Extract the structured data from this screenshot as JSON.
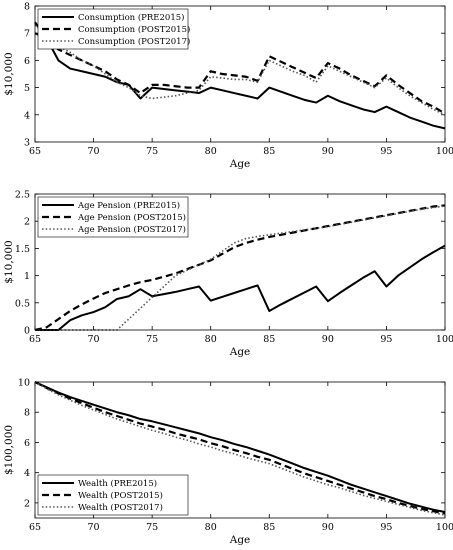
{
  "chart_data": [
    {
      "type": "line",
      "xlabel": "Age",
      "ylabel": "$10,000",
      "xlim": [
        65,
        100
      ],
      "ylim": [
        3,
        8
      ],
      "xticks": [
        65,
        70,
        75,
        80,
        85,
        90,
        95,
        100
      ],
      "yticks": [
        3,
        4,
        5,
        6,
        7,
        8
      ],
      "legend": "top-left",
      "grid": false,
      "series": [
        {
          "name": "Consumption (PRE2015)",
          "style": "solid",
          "x": [
            65,
            66,
            67,
            68,
            69,
            70,
            71,
            72,
            73,
            74,
            75,
            76,
            77,
            78,
            79,
            80,
            81,
            82,
            83,
            84,
            85,
            86,
            87,
            88,
            89,
            90,
            91,
            92,
            93,
            94,
            95,
            96,
            97,
            98,
            99,
            100
          ],
          "y": [
            7.0,
            6.8,
            6.0,
            5.7,
            5.6,
            5.5,
            5.4,
            5.2,
            5.1,
            4.6,
            5.0,
            4.95,
            4.9,
            4.85,
            4.8,
            5.0,
            4.9,
            4.8,
            4.7,
            4.6,
            5.0,
            4.85,
            4.7,
            4.55,
            4.45,
            4.7,
            4.5,
            4.35,
            4.2,
            4.1,
            4.3,
            4.1,
            3.9,
            3.75,
            3.6,
            3.5
          ]
        },
        {
          "name": "Consumption (POST2015)",
          "style": "dashed",
          "x": [
            65,
            66,
            67,
            68,
            69,
            70,
            71,
            72,
            73,
            74,
            75,
            76,
            77,
            78,
            79,
            80,
            81,
            82,
            83,
            84,
            85,
            86,
            87,
            88,
            89,
            90,
            91,
            92,
            93,
            94,
            95,
            96,
            97,
            98,
            99,
            100
          ],
          "y": [
            7.4,
            6.8,
            6.4,
            6.2,
            6.0,
            5.8,
            5.6,
            5.3,
            5.1,
            4.8,
            5.1,
            5.1,
            5.05,
            5.0,
            5.0,
            5.6,
            5.5,
            5.45,
            5.4,
            5.25,
            6.15,
            5.95,
            5.75,
            5.55,
            5.35,
            5.9,
            5.7,
            5.45,
            5.25,
            5.05,
            5.45,
            5.1,
            4.8,
            4.5,
            4.3,
            4.05
          ]
        },
        {
          "name": "Consumption (POST2017)",
          "style": "dotted",
          "x": [
            65,
            66,
            67,
            68,
            69,
            70,
            71,
            72,
            73,
            74,
            75,
            76,
            77,
            78,
            79,
            80,
            81,
            82,
            83,
            84,
            85,
            86,
            87,
            88,
            89,
            90,
            91,
            92,
            93,
            94,
            95,
            96,
            97,
            98,
            99,
            100
          ],
          "y": [
            7.3,
            6.9,
            6.5,
            6.3,
            6.0,
            5.8,
            5.5,
            5.2,
            5.0,
            4.7,
            4.6,
            4.65,
            4.7,
            4.8,
            4.9,
            5.4,
            5.35,
            5.3,
            5.3,
            5.2,
            6.0,
            5.8,
            5.6,
            5.45,
            5.2,
            5.8,
            5.6,
            5.4,
            5.2,
            5.0,
            5.35,
            5.0,
            4.7,
            4.45,
            4.2,
            4.0
          ]
        }
      ]
    },
    {
      "type": "line",
      "xlabel": "Age",
      "ylabel": "$10,000",
      "xlim": [
        65,
        100
      ],
      "ylim": [
        0,
        2.5
      ],
      "xticks": [
        65,
        70,
        75,
        80,
        85,
        90,
        95,
        100
      ],
      "yticks": [
        0,
        0.5,
        1,
        1.5,
        2,
        2.5
      ],
      "ytick_labels": [
        "0",
        "0.5",
        "1",
        "1.5",
        "2",
        "2.5"
      ],
      "legend": "top-left",
      "grid": false,
      "series": [
        {
          "name": "Age Pension (PRE2015)",
          "style": "solid",
          "x": [
            65,
            66,
            67,
            68,
            69,
            70,
            71,
            72,
            73,
            74,
            75,
            76,
            77,
            78,
            79,
            80,
            81,
            82,
            83,
            84,
            85,
            86,
            87,
            88,
            89,
            90,
            91,
            92,
            93,
            94,
            95,
            96,
            97,
            98,
            99,
            100
          ],
          "y": [
            0,
            0,
            0,
            0.18,
            0.27,
            0.33,
            0.42,
            0.57,
            0.62,
            0.75,
            0.62,
            0.66,
            0.7,
            0.75,
            0.8,
            0.54,
            0.61,
            0.68,
            0.75,
            0.82,
            0.35,
            0.47,
            0.58,
            0.69,
            0.8,
            0.53,
            0.68,
            0.82,
            0.96,
            1.08,
            0.8,
            1.0,
            1.15,
            1.3,
            1.43,
            1.55
          ]
        },
        {
          "name": "Age Pension (POST2015)",
          "style": "dashed",
          "x": [
            65,
            66,
            67,
            68,
            69,
            70,
            71,
            72,
            73,
            74,
            75,
            76,
            77,
            78,
            79,
            80,
            81,
            82,
            83,
            84,
            85,
            86,
            87,
            88,
            89,
            90,
            91,
            92,
            93,
            94,
            95,
            96,
            97,
            98,
            99,
            100
          ],
          "y": [
            0,
            0.05,
            0.2,
            0.35,
            0.47,
            0.58,
            0.68,
            0.75,
            0.82,
            0.88,
            0.92,
            0.98,
            1.04,
            1.12,
            1.2,
            1.28,
            1.4,
            1.52,
            1.6,
            1.66,
            1.71,
            1.75,
            1.79,
            1.83,
            1.87,
            1.91,
            1.95,
            1.99,
            2.03,
            2.07,
            2.11,
            2.15,
            2.19,
            2.23,
            2.27,
            2.29
          ]
        },
        {
          "name": "Age Pension (POST2017)",
          "style": "dotted",
          "x": [
            65,
            66,
            67,
            68,
            69,
            70,
            71,
            72,
            73,
            74,
            75,
            76,
            77,
            78,
            79,
            80,
            81,
            82,
            83,
            84,
            85,
            86,
            87,
            88,
            89,
            90,
            91,
            92,
            93,
            94,
            95,
            96,
            97,
            98,
            99,
            100
          ],
          "y": [
            0,
            0,
            0,
            0,
            0,
            0,
            0,
            0,
            0.2,
            0.4,
            0.6,
            0.8,
            1.0,
            1.1,
            1.2,
            1.3,
            1.45,
            1.6,
            1.68,
            1.72,
            1.75,
            1.78,
            1.81,
            1.84,
            1.87,
            1.9,
            1.94,
            1.98,
            2.02,
            2.06,
            2.1,
            2.14,
            2.18,
            2.22,
            2.25,
            2.28
          ]
        }
      ]
    },
    {
      "type": "line",
      "xlabel": "Age",
      "ylabel": "$100,000",
      "xlim": [
        65,
        100
      ],
      "ylim": [
        1,
        10
      ],
      "xticks": [
        65,
        70,
        75,
        80,
        85,
        90,
        95,
        100
      ],
      "yticks": [
        2,
        4,
        6,
        8,
        10
      ],
      "legend": "bottom-left",
      "grid": false,
      "series": [
        {
          "name": "Wealth (PRE2015)",
          "style": "solid",
          "x": [
            65,
            66,
            67,
            68,
            69,
            70,
            71,
            72,
            73,
            74,
            75,
            76,
            77,
            78,
            79,
            80,
            81,
            82,
            83,
            84,
            85,
            86,
            87,
            88,
            89,
            90,
            91,
            92,
            93,
            94,
            95,
            96,
            97,
            98,
            99,
            100
          ],
          "y": [
            10.0,
            9.65,
            9.3,
            9.0,
            8.75,
            8.5,
            8.25,
            8.0,
            7.8,
            7.55,
            7.4,
            7.2,
            7.0,
            6.8,
            6.6,
            6.35,
            6.15,
            5.9,
            5.7,
            5.45,
            5.2,
            4.9,
            4.6,
            4.3,
            4.05,
            3.8,
            3.5,
            3.2,
            2.95,
            2.7,
            2.45,
            2.2,
            1.95,
            1.75,
            1.55,
            1.4
          ]
        },
        {
          "name": "Wealth (POST2015)",
          "style": "dashed",
          "x": [
            65,
            66,
            67,
            68,
            69,
            70,
            71,
            72,
            73,
            74,
            75,
            76,
            77,
            78,
            79,
            80,
            81,
            82,
            83,
            84,
            85,
            86,
            87,
            88,
            89,
            90,
            91,
            92,
            93,
            94,
            95,
            96,
            97,
            98,
            99,
            100
          ],
          "y": [
            10.0,
            9.6,
            9.25,
            8.9,
            8.6,
            8.3,
            8.0,
            7.75,
            7.5,
            7.25,
            7.05,
            6.85,
            6.6,
            6.4,
            6.2,
            5.95,
            5.75,
            5.5,
            5.3,
            5.05,
            4.85,
            4.55,
            4.25,
            3.95,
            3.7,
            3.45,
            3.2,
            2.95,
            2.7,
            2.45,
            2.25,
            2.0,
            1.8,
            1.6,
            1.45,
            1.3
          ]
        },
        {
          "name": "Wealth (POST2017)",
          "style": "dotted",
          "x": [
            65,
            66,
            67,
            68,
            69,
            70,
            71,
            72,
            73,
            74,
            75,
            76,
            77,
            78,
            79,
            80,
            81,
            82,
            83,
            84,
            85,
            86,
            87,
            88,
            89,
            90,
            91,
            92,
            93,
            94,
            95,
            96,
            97,
            98,
            99,
            100
          ],
          "y": [
            10.0,
            9.55,
            9.15,
            8.8,
            8.45,
            8.15,
            7.85,
            7.55,
            7.3,
            7.05,
            6.8,
            6.6,
            6.35,
            6.15,
            5.9,
            5.7,
            5.45,
            5.25,
            5.0,
            4.8,
            4.6,
            4.3,
            4.0,
            3.7,
            3.45,
            3.2,
            3.0,
            2.75,
            2.5,
            2.3,
            2.1,
            1.9,
            1.7,
            1.5,
            1.35,
            1.2
          ]
        }
      ]
    }
  ]
}
